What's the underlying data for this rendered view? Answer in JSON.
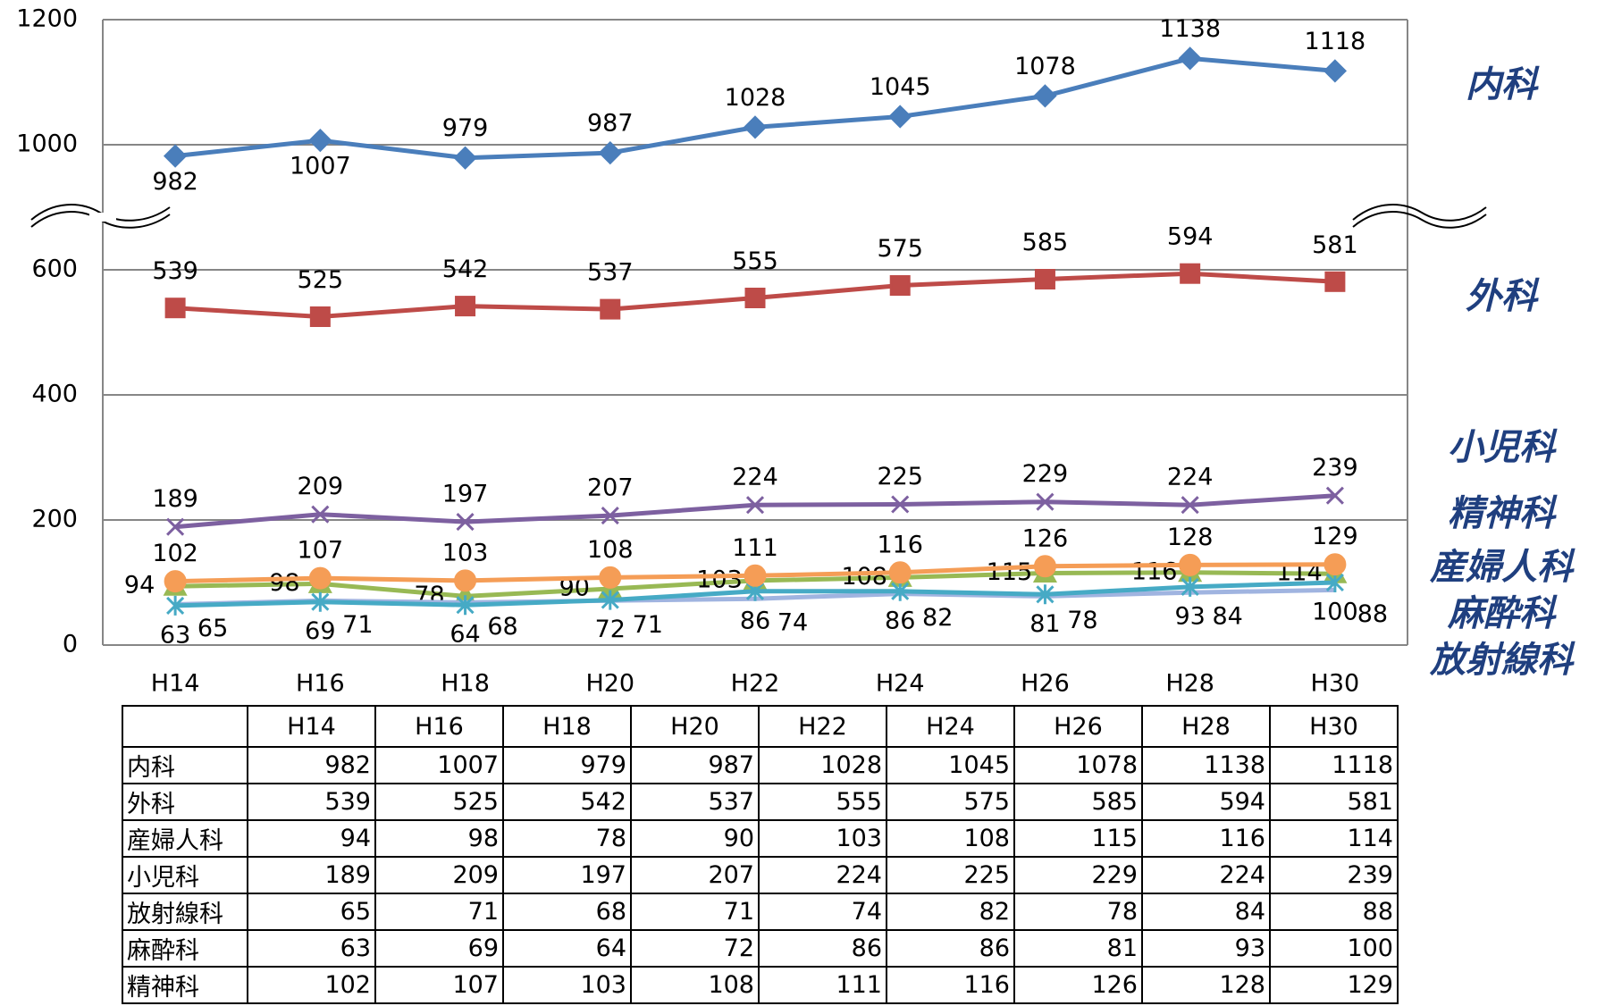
{
  "chart_data": {
    "type": "line",
    "categories": [
      "H14",
      "H16",
      "H18",
      "H20",
      "H22",
      "H24",
      "H26",
      "H28",
      "H30"
    ],
    "ylim": [
      0,
      1200
    ],
    "yticks": [
      0,
      200,
      400,
      600,
      1000,
      1200
    ],
    "y_break": [
      700,
      900
    ],
    "grid": true,
    "series": [
      {
        "name": "内科",
        "color": "#4a7ebb",
        "marker": "diamond",
        "values": [
          982,
          1007,
          979,
          987,
          1028,
          1045,
          1078,
          1138,
          1118
        ]
      },
      {
        "name": "外科",
        "color": "#be4b48",
        "marker": "square",
        "values": [
          539,
          525,
          542,
          537,
          555,
          575,
          585,
          594,
          581
        ]
      },
      {
        "name": "産婦人科",
        "color": "#98b954",
        "marker": "triangle",
        "values": [
          94,
          98,
          78,
          90,
          103,
          108,
          115,
          116,
          114
        ]
      },
      {
        "name": "小児科",
        "color": "#7d60a0",
        "marker": "x",
        "values": [
          189,
          209,
          197,
          207,
          224,
          225,
          229,
          224,
          239
        ]
      },
      {
        "name": "放射線科",
        "color": "#a0b4e0",
        "marker": "none",
        "values": [
          65,
          71,
          68,
          71,
          74,
          82,
          78,
          84,
          88
        ]
      },
      {
        "name": "麻酔科",
        "color": "#46aac5",
        "marker": "star",
        "values": [
          63,
          69,
          64,
          72,
          86,
          86,
          81,
          93,
          100
        ]
      },
      {
        "name": "精神科",
        "color": "#f59d56",
        "marker": "circle",
        "values": [
          102,
          107,
          103,
          108,
          111,
          116,
          126,
          128,
          129
        ]
      }
    ]
  }
}
